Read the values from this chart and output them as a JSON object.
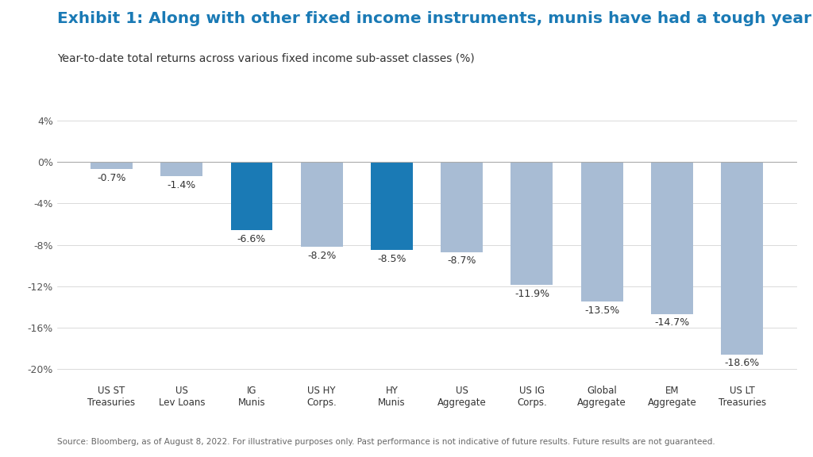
{
  "title": "Exhibit 1: Along with other fixed income instruments, munis have had a tough year",
  "subtitle": "Year-to-date total returns across various fixed income sub-asset classes (%)",
  "source": "Source: Bloomberg, as of August 8, 2022. For illustrative purposes only. Past performance is not indicative of future results. Future results are not guaranteed.",
  "categories": [
    "US ST\nTreasuries",
    "US\nLev Loans",
    "IG\nMunis",
    "US HY\nCorps.",
    "HY\nMunis",
    "US\nAggregate",
    "US IG\nCorps.",
    "Global\nAggregate",
    "EM\nAggregate",
    "US LT\nTreasuries"
  ],
  "values": [
    -0.7,
    -1.4,
    -6.6,
    -8.2,
    -8.5,
    -8.7,
    -11.9,
    -13.5,
    -14.7,
    -18.6
  ],
  "labels": [
    "-0.7%",
    "-1.4%",
    "-6.6%",
    "-8.2%",
    "-8.5%",
    "-8.7%",
    "-11.9%",
    "-13.5%",
    "-14.7%",
    "-18.6%"
  ],
  "colors": [
    "#a8bcd4",
    "#a8bcd4",
    "#1a7ab5",
    "#a8bcd4",
    "#1a7ab5",
    "#a8bcd4",
    "#a8bcd4",
    "#a8bcd4",
    "#a8bcd4",
    "#a8bcd4"
  ],
  "ylim": [
    -21,
    5.5
  ],
  "yticks": [
    4,
    0,
    -4,
    -8,
    -12,
    -16,
    -20
  ],
  "ytick_labels": [
    "4%",
    "0%",
    "-4%",
    "-8%",
    "-12%",
    "-16%",
    "-20%"
  ],
  "title_color": "#1a7ab5",
  "subtitle_color": "#333333",
  "background_color": "#ffffff",
  "title_fontsize": 14.5,
  "subtitle_fontsize": 10,
  "source_fontsize": 7.5,
  "label_fontsize": 9,
  "tick_fontsize": 9,
  "xtick_fontsize": 8.5
}
